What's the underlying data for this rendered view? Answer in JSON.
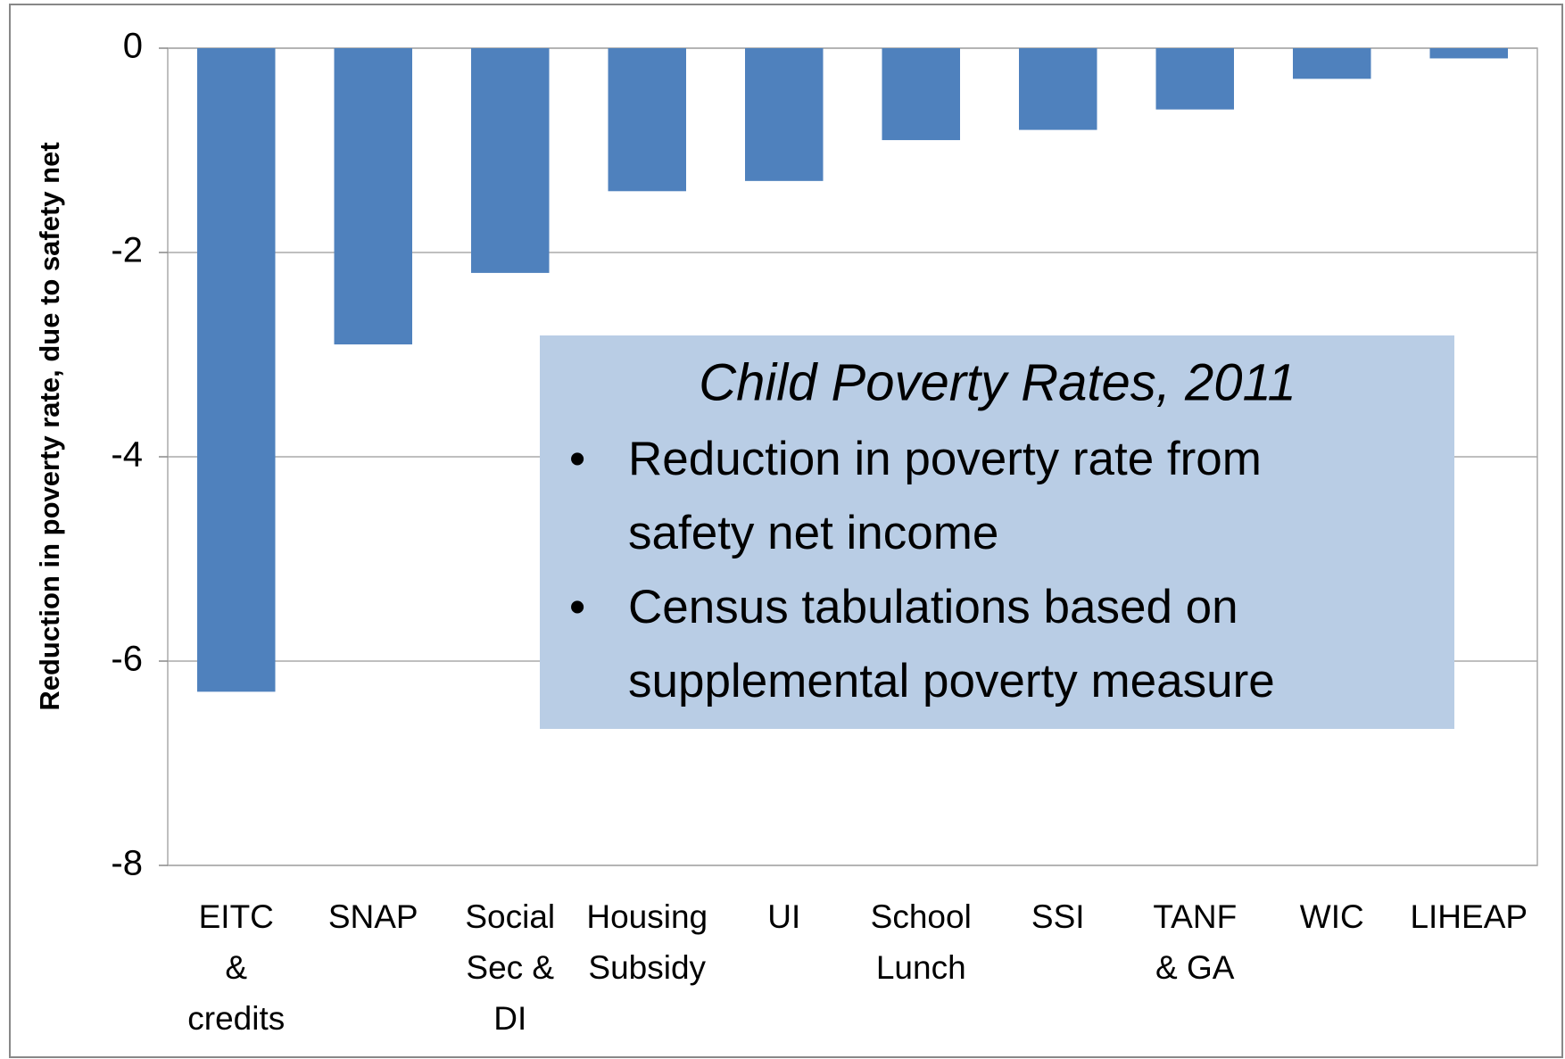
{
  "chart_data": {
    "type": "bar",
    "categories": [
      [
        "EITC",
        "&",
        "credits"
      ],
      [
        "SNAP"
      ],
      [
        "Social",
        "Sec &",
        "DI"
      ],
      [
        "Housing",
        "Subsidy"
      ],
      [
        "UI"
      ],
      [
        "School",
        "Lunch"
      ],
      [
        "SSI"
      ],
      [
        "TANF",
        "& GA"
      ],
      [
        "WIC"
      ],
      [
        "LIHEAP"
      ]
    ],
    "values": [
      -6.3,
      -2.9,
      -2.2,
      -1.4,
      -1.3,
      -0.9,
      -0.8,
      -0.6,
      -0.3,
      -0.1
    ],
    "color": "#4f81bd",
    "ylabel": "Reduction in poverty rate, due to safety net",
    "ylim": [
      -8,
      0
    ],
    "yticks": [
      0,
      -2,
      -4,
      -6,
      -8
    ],
    "grid": true,
    "annotation": {
      "title": "Child Poverty Rates, 2011",
      "bullets": [
        [
          "Reduction in poverty rate from",
          "safety net income"
        ],
        [
          "Census tabulations based on",
          "supplemental poverty measure"
        ]
      ]
    }
  }
}
